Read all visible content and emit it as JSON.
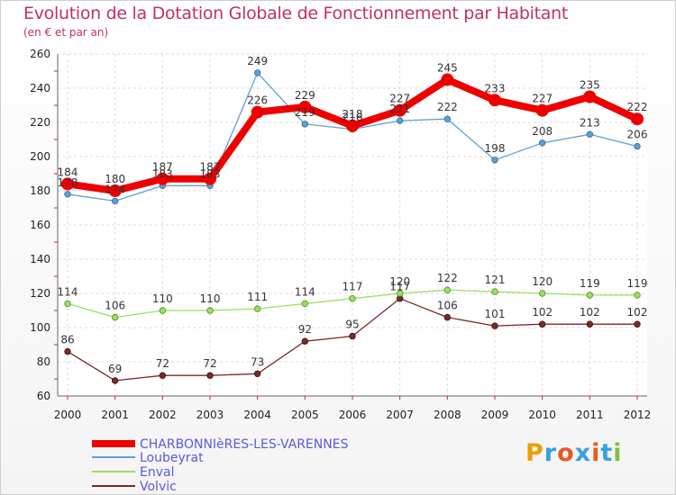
{
  "title": "Evolution de la Dotation Globale de Fonctionnement par Habitant",
  "subtitle": "(en € et par an)",
  "brand": {
    "letters": [
      "P",
      "r",
      "o",
      "x",
      "i",
      "t",
      "i"
    ],
    "colors": [
      "#e8a000",
      "#3aa0e0",
      "#e85a20",
      "#3aa0e0",
      "#e85a20",
      "#3aa0e0",
      "#80c040"
    ]
  },
  "chart_data": {
    "type": "line",
    "title": "Evolution de la Dotation Globale de Fonctionnement par Habitant",
    "ylabel": "(en € et par an)",
    "xlabel": "",
    "categories": [
      "2000",
      "2001",
      "2002",
      "2003",
      "2004",
      "2005",
      "2006",
      "2007",
      "2008",
      "2009",
      "2010",
      "2011",
      "2012"
    ],
    "ylim": [
      60,
      260
    ],
    "yticks": [
      60,
      80,
      100,
      120,
      140,
      160,
      180,
      200,
      220,
      240,
      260
    ],
    "grid": true,
    "series": [
      {
        "name": "CHARBONNIèRES-LES-VARENNES",
        "color": "#ee0000",
        "values": [
          184,
          180,
          187,
          187,
          226,
          229,
          218,
          227,
          245,
          233,
          227,
          235,
          222
        ]
      },
      {
        "name": "Loubeyrat",
        "color": "#5f9fd0",
        "values": [
          178,
          174,
          183,
          183,
          249,
          219,
          216,
          221,
          222,
          198,
          208,
          213,
          206
        ]
      },
      {
        "name": "Enval",
        "color": "#99e060",
        "values": [
          114,
          106,
          110,
          110,
          111,
          114,
          117,
          120,
          122,
          121,
          120,
          119,
          119
        ]
      },
      {
        "name": "Volvic",
        "color": "#7a2a2a",
        "values": [
          86,
          69,
          72,
          72,
          73,
          92,
          95,
          117,
          106,
          101,
          102,
          102,
          102
        ]
      }
    ]
  }
}
